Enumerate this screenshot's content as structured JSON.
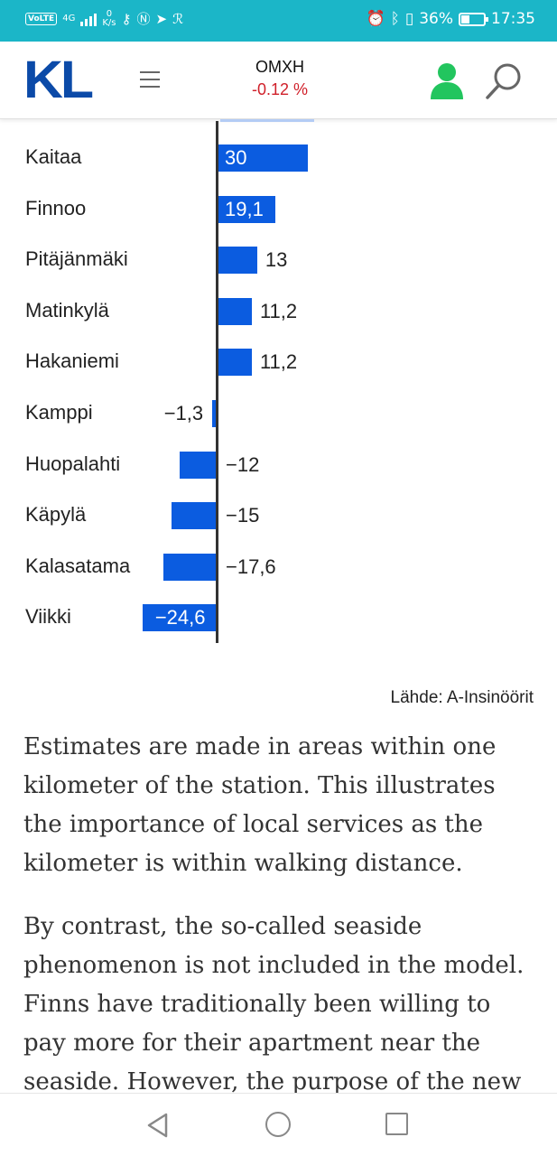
{
  "status_bar": {
    "volte": "VoLTE",
    "network": "4G",
    "speed_value": "0",
    "speed_unit": "K/s",
    "battery_percent": "36%",
    "battery_level": 0.36,
    "time": "17:35"
  },
  "header": {
    "logo": "KL",
    "ticker_name": "OMXH",
    "ticker_change": "-0.12 %",
    "colors": {
      "logo": "#0b4aa8",
      "negative": "#d0202a",
      "user_icon": "#22c55e"
    }
  },
  "chart_data": {
    "type": "bar",
    "orientation": "horizontal",
    "categories": [
      "Kaitaa",
      "Finnoo",
      "Pitäjänmäki",
      "Matinkylä",
      "Hakaniemi",
      "Kamppi",
      "Huopalahti",
      "Käpylä",
      "Kalasatama",
      "Viikki"
    ],
    "values": [
      30,
      19.1,
      13,
      11.2,
      11.2,
      -1.3,
      -12,
      -15,
      -17.6,
      -24.6
    ],
    "value_labels": [
      "30",
      "19,1",
      "13",
      "11,2",
      "11,2",
      "−1,3",
      "−12",
      "−15",
      "−17,6",
      "−24,6"
    ],
    "bar_color": "#0b5ce0",
    "source": "Lähde: A-Insinöörit"
  },
  "article": {
    "paragraphs": [
      "Estimates are made in areas within one kilometer of the station. This illustrates the importance of local services as the kilometer is within walking distance.",
      "By contrast, the so-called seaside phenomenon is not included in the model. Finns have traditionally been willing to pay more for their apartment near the seaside. However, the purpose of the new"
    ]
  },
  "nav": {
    "icons": [
      "back-icon",
      "home-icon",
      "recent-apps-icon"
    ]
  }
}
